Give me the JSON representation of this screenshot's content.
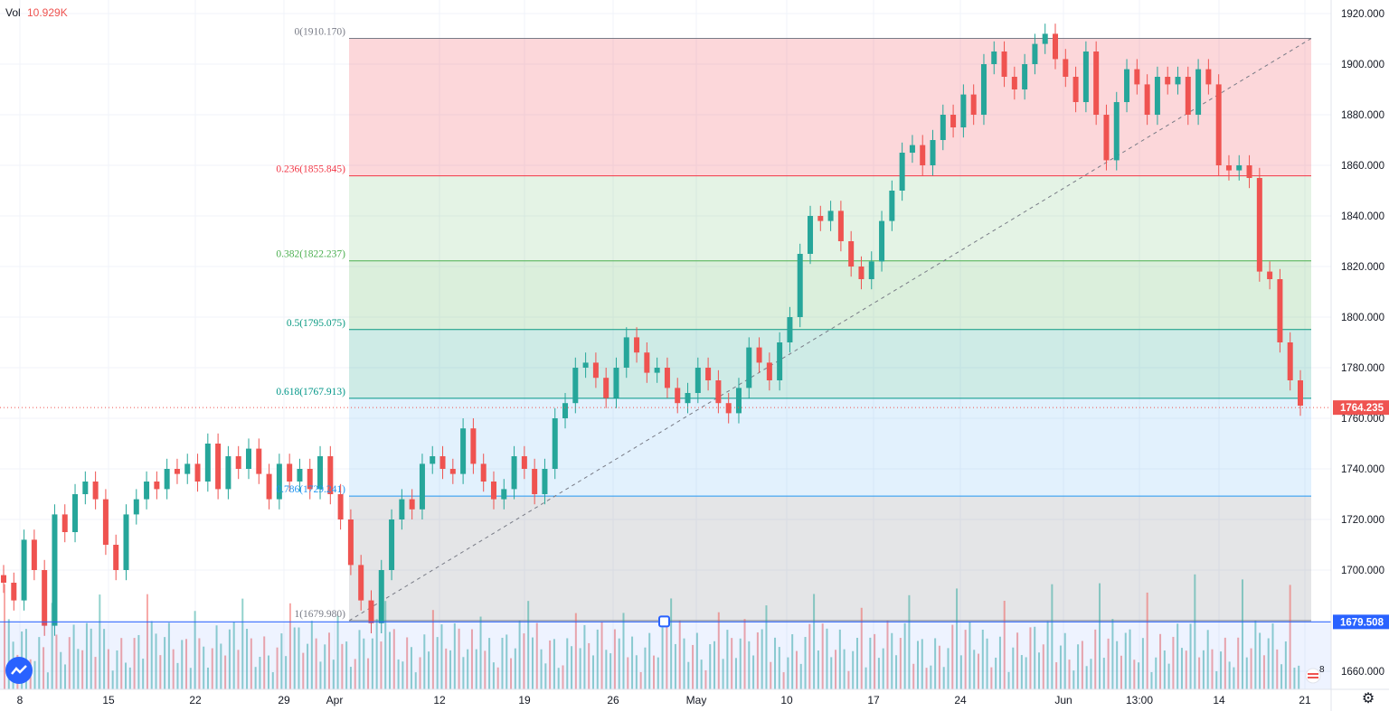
{
  "volume_legend": {
    "label": "Vol",
    "value": "10.929K"
  },
  "price_axis": {
    "ticks": [
      "1920.000",
      "1900.000",
      "1880.000",
      "1860.000",
      "1840.000",
      "1820.000",
      "1800.000",
      "1780.000",
      "1760.000",
      "1740.000",
      "1720.000",
      "1700.000",
      "1680.000",
      "1660.000"
    ],
    "current_price_tag": "1764.235",
    "hline_tag": "1679.508"
  },
  "time_axis": {
    "labels": [
      "8",
      "15",
      "22",
      "29",
      "Apr",
      "12",
      "19",
      "26",
      "May",
      "10",
      "17",
      "24",
      "Jun",
      "13:00",
      "14",
      "21"
    ]
  },
  "fib_levels": [
    {
      "label": "0(1910.170)",
      "price": 1910.17,
      "color": "#787b86"
    },
    {
      "label": "0.236(1855.845)",
      "price": 1855.845,
      "color": "#f23645"
    },
    {
      "label": "0.382(1822.237)",
      "price": 1822.237,
      "color": "#4caf50"
    },
    {
      "label": "0.5(1795.075)",
      "price": 1795.075,
      "color": "#089981"
    },
    {
      "label": "0.618(1767.913)",
      "price": 1767.913,
      "color": "#009688"
    },
    {
      "label": "0.786(1729.241)",
      "price": 1729.241,
      "color": "#2196f3"
    },
    {
      "label": "1(1679.980)",
      "price": 1679.98,
      "color": "#787b86"
    }
  ],
  "colors": {
    "up": "#26a69a",
    "down": "#ef5350",
    "hline": "#2962ff"
  },
  "icons": {
    "logo": "tradingview-logo-icon",
    "settings": "gear-icon",
    "flag": "us-flag-icon"
  },
  "flag_badge": "8",
  "chart_data": {
    "type": "candlestick",
    "price_range": [
      1654,
      1922
    ],
    "current_price": 1764.235,
    "horizontal_line": 1679.508,
    "fib_retracement": {
      "from": 1679.98,
      "to": 1910.17
    },
    "series": [
      {
        "name": "",
        "values": [
          1695,
          1688,
          1712,
          1700,
          1678,
          1722,
          1715,
          1730,
          1735,
          1728,
          1710,
          1700,
          1722,
          1728,
          1735,
          1732,
          1740,
          1738,
          1742,
          1735,
          1750,
          1732,
          1745,
          1740,
          1748,
          1738,
          1728,
          1742,
          1735,
          1740,
          1732,
          1745,
          1730,
          1720,
          1702,
          1688,
          1679,
          1700,
          1720,
          1728,
          1724,
          1742,
          1745,
          1740,
          1738,
          1756,
          1742,
          1735,
          1728,
          1732,
          1745,
          1740,
          1730,
          1740,
          1760,
          1766,
          1780,
          1782,
          1776,
          1768,
          1780,
          1792,
          1786,
          1778,
          1780,
          1772,
          1766,
          1770,
          1780,
          1775,
          1766,
          1762,
          1772,
          1788,
          1782,
          1775,
          1790,
          1800,
          1825,
          1840,
          1838,
          1842,
          1830,
          1820,
          1815,
          1822,
          1838,
          1850,
          1865,
          1868,
          1860,
          1870,
          1880,
          1875,
          1888,
          1880,
          1900,
          1905,
          1895,
          1890,
          1900,
          1908,
          1912,
          1902,
          1895,
          1885,
          1905,
          1880,
          1862,
          1885,
          1898,
          1892,
          1880,
          1895,
          1892,
          1895,
          1880,
          1898,
          1892,
          1860,
          1858,
          1860,
          1855,
          1818,
          1815,
          1790,
          1775,
          1765
        ]
      }
    ],
    "volume_series": {
      "name": "Vol",
      "last": "10.929K"
    }
  }
}
